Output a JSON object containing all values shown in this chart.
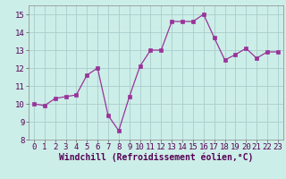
{
  "x": [
    0,
    1,
    2,
    3,
    4,
    5,
    6,
    7,
    8,
    9,
    10,
    11,
    12,
    13,
    14,
    15,
    16,
    17,
    18,
    19,
    20,
    21,
    22,
    23
  ],
  "y": [
    10.0,
    9.9,
    10.3,
    10.4,
    10.5,
    11.6,
    12.0,
    9.35,
    8.5,
    10.4,
    12.1,
    13.0,
    13.0,
    14.6,
    14.6,
    14.6,
    15.0,
    13.7,
    12.45,
    12.75,
    13.1,
    12.55,
    12.9,
    12.9
  ],
  "line_color": "#993399",
  "marker": "s",
  "marker_size": 2.5,
  "bg_color": "#cceee8",
  "grid_color": "#aacccc",
  "xlabel": "Windchill (Refroidissement éolien,°C)",
  "xlabel_fontsize": 7,
  "tick_fontsize": 6.5,
  "ylim": [
    8,
    15.5
  ],
  "yticks": [
    8,
    9,
    10,
    11,
    12,
    13,
    14,
    15
  ],
  "xlim": [
    -0.5,
    23.5
  ],
  "xticks": [
    0,
    1,
    2,
    3,
    4,
    5,
    6,
    7,
    8,
    9,
    10,
    11,
    12,
    13,
    14,
    15,
    16,
    17,
    18,
    19,
    20,
    21,
    22,
    23
  ]
}
